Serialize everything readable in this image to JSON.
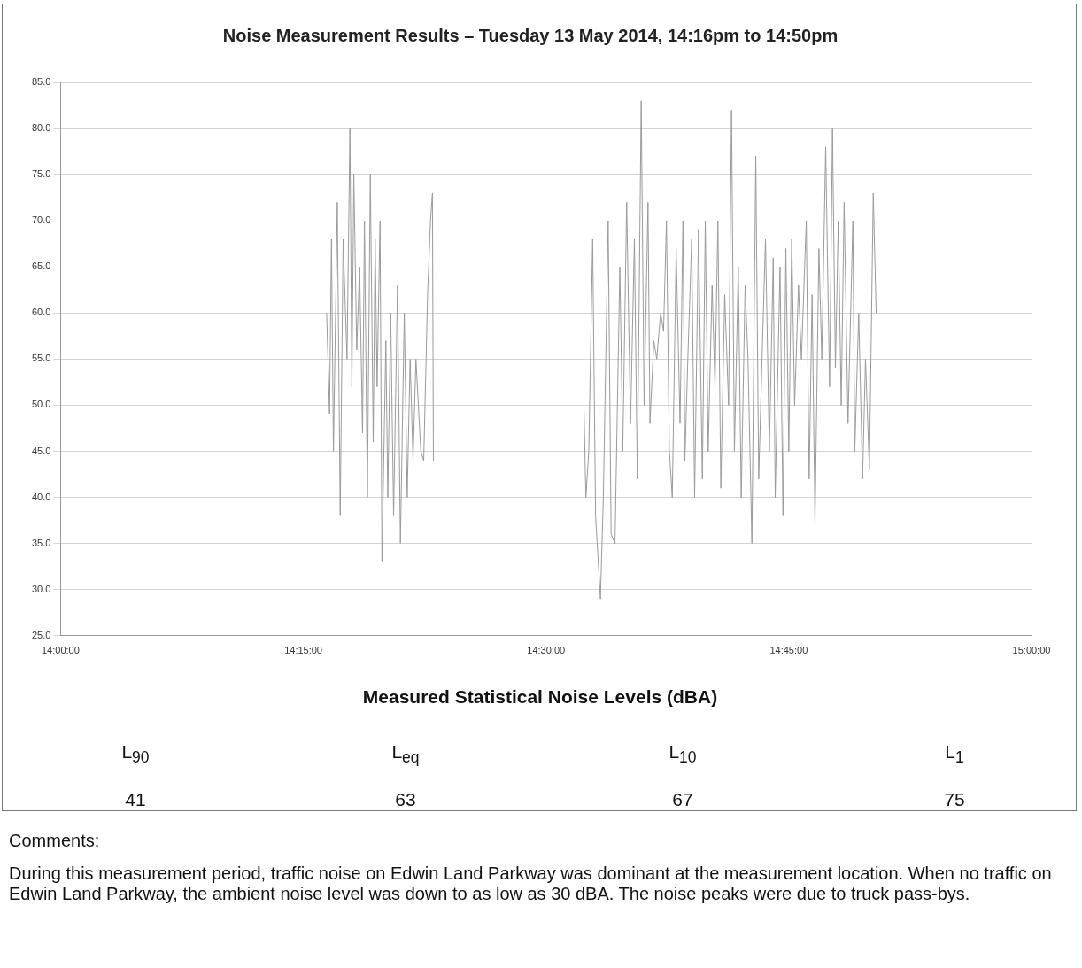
{
  "chart_data": {
    "type": "line",
    "title": "Noise Measurement Results – Tuesday 13 May 2014, 14:16pm to 14:50pm",
    "x": [
      14.274,
      14.277,
      14.279,
      14.281,
      14.285,
      14.288,
      14.291,
      14.295,
      14.298,
      14.3,
      14.302,
      14.305,
      14.308,
      14.311,
      14.313,
      14.316,
      14.319,
      14.322,
      14.324,
      14.326,
      14.329,
      14.331,
      14.335,
      14.337,
      14.34,
      14.343,
      14.347,
      14.35,
      14.354,
      14.357,
      14.36,
      14.363,
      14.366,
      14.371,
      14.374,
      14.378,
      14.381,
      14.383,
      14.384,
      14.46,
      14.539,
      14.541,
      14.544,
      14.548,
      14.551,
      14.556,
      14.559,
      14.564,
      14.567,
      14.571,
      14.576,
      14.579,
      14.583,
      14.587,
      14.591,
      14.594,
      14.598,
      14.601,
      14.605,
      14.607,
      14.611,
      14.614,
      14.618,
      14.621,
      14.624,
      14.627,
      14.63,
      14.634,
      14.638,
      14.641,
      14.643,
      14.646,
      14.65,
      14.653,
      14.657,
      14.661,
      14.664,
      14.667,
      14.671,
      14.674,
      14.677,
      14.68,
      14.684,
      14.688,
      14.691,
      14.694,
      14.698,
      14.701,
      14.705,
      14.708,
      14.712,
      14.716,
      14.719,
      14.723,
      14.726,
      14.73,
      14.734,
      14.736,
      14.741,
      14.744,
      14.747,
      14.75,
      14.753,
      14.756,
      14.76,
      14.763,
      14.768,
      14.771,
      14.774,
      14.777,
      14.781,
      14.784,
      14.788,
      14.792,
      14.795,
      14.798,
      14.801,
      14.804,
      14.807,
      14.811,
      14.816,
      14.818,
      14.822,
      14.826,
      14.829,
      14.833,
      14.837,
      14.84
    ],
    "values": [
      60,
      49,
      68,
      45,
      72,
      38,
      68,
      55,
      80,
      52,
      75,
      56,
      65,
      47,
      70,
      40,
      75,
      46,
      68,
      52,
      70,
      33,
      57,
      40,
      60,
      38,
      63,
      35,
      60,
      40,
      55,
      44,
      55,
      45,
      44,
      62,
      70,
      73,
      44,
      null,
      50,
      40,
      45,
      68,
      38,
      29,
      40,
      70,
      36,
      35,
      65,
      45,
      72,
      48,
      68,
      42,
      83,
      50,
      72,
      48,
      57,
      55,
      60,
      58,
      70,
      45,
      40,
      67,
      48,
      70,
      44,
      55,
      68,
      40,
      69,
      42,
      70,
      45,
      63,
      52,
      70,
      41,
      62,
      50,
      82,
      45,
      65,
      40,
      63,
      55,
      35,
      77,
      42,
      57,
      68,
      45,
      66,
      40,
      65,
      38,
      67,
      45,
      68,
      50,
      63,
      55,
      70,
      42,
      62,
      37,
      67,
      55,
      78,
      52,
      80,
      54,
      70,
      50,
      72,
      48,
      70,
      45,
      60,
      42,
      55,
      43,
      73,
      60
    ],
    "color": "#9a9a9a",
    "marker": "none",
    "grid": "y",
    "xlim": [
      14,
      15
    ],
    "xticks": [
      {
        "value": 14,
        "label": "14:00:00"
      },
      {
        "value": 14.25,
        "label": "14:15:00"
      },
      {
        "value": 14.5,
        "label": "14:30:00"
      },
      {
        "value": 14.75,
        "label": "14:45:00"
      },
      {
        "value": 15,
        "label": "15:00:00"
      }
    ],
    "ylim": [
      25,
      85
    ],
    "yticks": [
      {
        "value": 25,
        "label": "25.0"
      },
      {
        "value": 30,
        "label": "30.0"
      },
      {
        "value": 35,
        "label": "35.0"
      },
      {
        "value": 40,
        "label": "40.0"
      },
      {
        "value": 45,
        "label": "45.0"
      },
      {
        "value": 50,
        "label": "50.0"
      },
      {
        "value": 55,
        "label": "55.0"
      },
      {
        "value": 60,
        "label": "60.0"
      },
      {
        "value": 65,
        "label": "65.0"
      },
      {
        "value": 70,
        "label": "70.0"
      },
      {
        "value": 75,
        "label": "75.0"
      },
      {
        "value": 80,
        "label": "80.0"
      },
      {
        "value": 85,
        "label": "85.0"
      }
    ],
    "annotations": [
      "Measured Statistical Noise Levels (dBA)",
      "L$_{90}$",
      "L$_{eq}$",
      "L$_{10}$",
      "L$_{1}$",
      "41",
      "63",
      "67",
      "75",
      "Comments:",
      "During this measurement period, traffic noise on Edwin Land Parkway was dominant at the measurement location.  When no traffic on Edwin Land Parkway, the ambient noise level was down to as low as 30 dBA.  The noise peaks were due to truck pass-bys."
    ]
  }
}
